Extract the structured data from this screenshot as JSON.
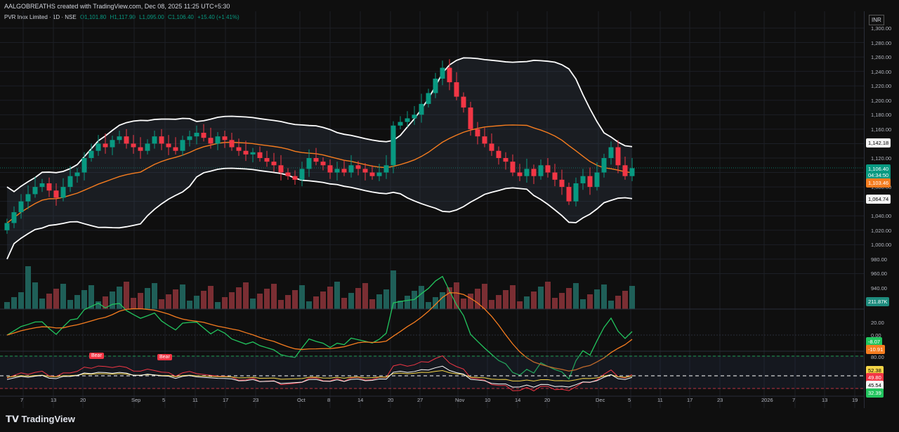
{
  "header": {
    "credit": "AALGOBREATHS created with TradingView.com, Dec 08, 2025 11:25 UTC+5:30",
    "symbol": "PVR Inox Limited · 1D · NSE",
    "open": "O1,101.80",
    "high": "H1,117.90",
    "low": "L1,095.00",
    "close": "C1,106.40",
    "change": "+15.40 (+1.41%)"
  },
  "price_scale": {
    "currency": "INR",
    "ticks": [
      "1,300.00",
      "1,280.00",
      "1,260.00",
      "1,240.00",
      "1,220.00",
      "1,200.00",
      "1,180.00",
      "1,160.00",
      "1,120.00",
      "1,080.00",
      "1,040.00",
      "1,020.00",
      "1,000.00",
      "980.00",
      "960.00",
      "940.00"
    ],
    "upper_band": "1,142.18",
    "last_price": "1,106.40",
    "countdown": "04:34:50",
    "basis": "1,103.46",
    "lower_band": "1,064.74",
    "volume": "211.87K"
  },
  "osc1": {
    "ticks": [
      "20.00",
      "0.00"
    ],
    "value_a": "-8.07",
    "value_b": "-10.91"
  },
  "osc2": {
    "ticks": [
      "80.00"
    ],
    "value_a": "52.38",
    "value_b": "49.80",
    "value_c": "45.54",
    "value_d": "32.39",
    "signal_1": "Bear",
    "signal_2": "Bear"
  },
  "time_axis": [
    "7",
    "13",
    "20",
    "Sep",
    "5",
    "11",
    "17",
    "23",
    "Oct",
    "8",
    "14",
    "20",
    "27",
    "Nov",
    "10",
    "14",
    "20",
    "Dec",
    "5",
    "11",
    "17",
    "23",
    "2026",
    "7",
    "13",
    "19"
  ],
  "footer": {
    "logo": "TradingView"
  },
  "colors": {
    "up": "#089981",
    "down": "#f23645",
    "band": "#ffffff",
    "basis": "#f57c1f",
    "osc_green": "#22c55e",
    "osc_orange": "#f57c1f"
  },
  "chart_data": {
    "type": "candlestick",
    "title": "PVR Inox Limited · 1D · NSE",
    "ylim": [
      940,
      1300
    ],
    "close_series": [
      1030,
      1045,
      1060,
      1070,
      1080,
      1085,
      1075,
      1065,
      1080,
      1095,
      1100,
      1120,
      1130,
      1140,
      1135,
      1145,
      1150,
      1140,
      1135,
      1130,
      1140,
      1150,
      1140,
      1135,
      1130,
      1145,
      1150,
      1155,
      1148,
      1140,
      1150,
      1145,
      1135,
      1130,
      1125,
      1128,
      1120,
      1115,
      1110,
      1100,
      1095,
      1090,
      1105,
      1120,
      1115,
      1110,
      1100,
      1105,
      1100,
      1110,
      1105,
      1100,
      1095,
      1100,
      1110,
      1165,
      1170,
      1175,
      1180,
      1195,
      1210,
      1230,
      1245,
      1225,
      1205,
      1190,
      1160,
      1150,
      1140,
      1130,
      1120,
      1115,
      1100,
      1095,
      1105,
      1095,
      1110,
      1100,
      1090,
      1080,
      1060,
      1085,
      1095,
      1080,
      1100,
      1120,
      1135,
      1110,
      1095,
      1106
    ]
  }
}
